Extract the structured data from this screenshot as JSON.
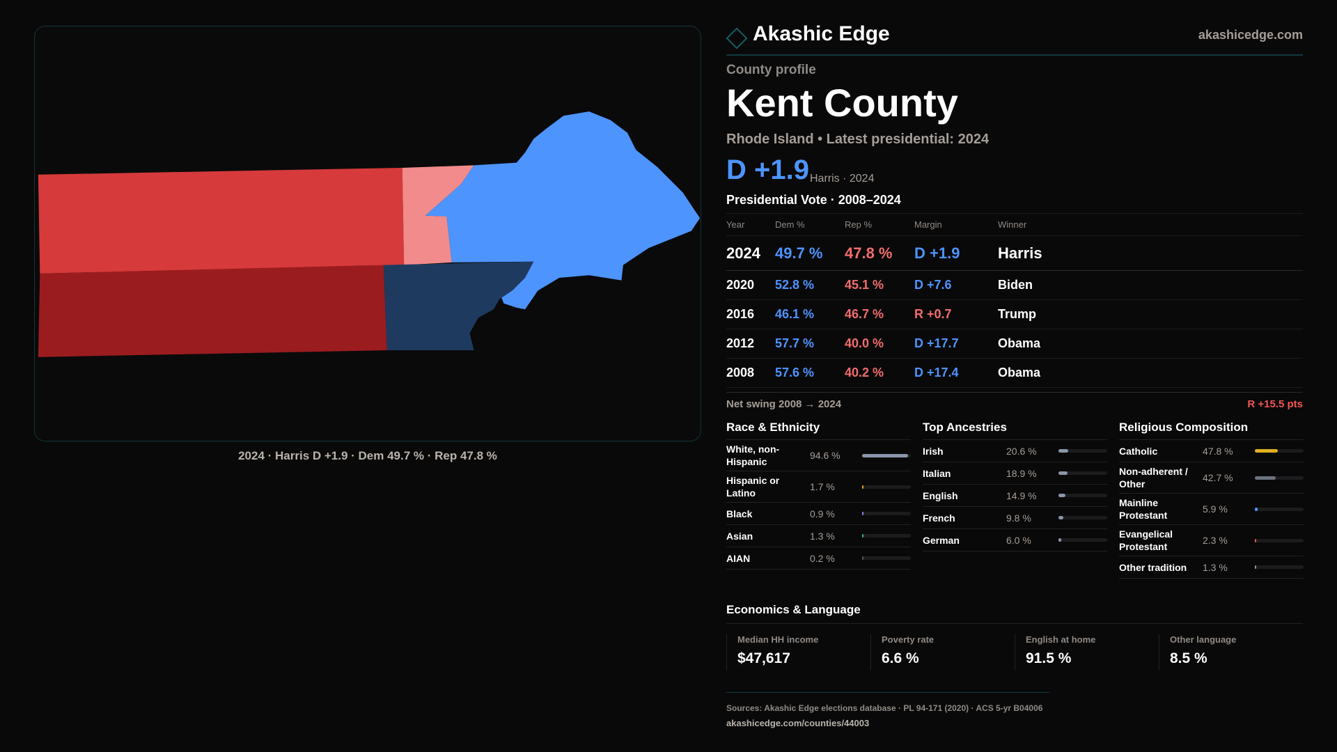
{
  "brand": {
    "name": "Akashic Edge",
    "site": "akashicedge.com"
  },
  "profile": {
    "kicker": "County profile",
    "title": "Kent County",
    "subtitle": "Rhode Island • Latest presidential: 2024",
    "margin": "D +1.9",
    "margin_sub": "Harris · 2024"
  },
  "map": {
    "caption": "2024 · Harris D +1.9 · Dem 49.7 % · Rep 47.8 %",
    "colors": {
      "dem_strong": "#4d94ff",
      "dem_navy": "#1f3a5f",
      "rep": "#d63a3a",
      "rep_dark": "#9b1c1f",
      "rep_light": "#f28b8b"
    }
  },
  "votes": {
    "title": "Presidential Vote · 2008–2024",
    "headers": [
      "Year",
      "Dem %",
      "Rep %",
      "Margin",
      "Winner"
    ],
    "rows": [
      {
        "year": "2024",
        "dem": "49.7 %",
        "rep": "47.8 %",
        "margin": "D +1.9",
        "winner": "Harris",
        "party": "dem"
      },
      {
        "year": "2020",
        "dem": "52.8 %",
        "rep": "45.1 %",
        "margin": "D +7.6",
        "winner": "Biden",
        "party": "dem"
      },
      {
        "year": "2016",
        "dem": "46.1 %",
        "rep": "46.7 %",
        "margin": "R +0.7",
        "winner": "Trump",
        "party": "rep"
      },
      {
        "year": "2012",
        "dem": "57.7 %",
        "rep": "40.0 %",
        "margin": "D +17.7",
        "winner": "Obama",
        "party": "dem"
      },
      {
        "year": "2008",
        "dem": "57.6 %",
        "rep": "40.2 %",
        "margin": "D +17.4",
        "winner": "Obama",
        "party": "dem"
      }
    ],
    "swing_label": "Net swing 2008 → 2024",
    "swing_value": "R +15.5 pts"
  },
  "race": {
    "title": "Race & Ethnicity",
    "items": [
      {
        "label": "White, non-Hispanic",
        "pct": "94.6 %",
        "value": 94.6,
        "color": "#8a96ab"
      },
      {
        "label": "Hispanic or Latino",
        "pct": "1.7 %",
        "value": 1.7,
        "color": "#e0a020"
      },
      {
        "label": "Black",
        "pct": "0.9 %",
        "value": 0.9,
        "color": "#9a7ae0"
      },
      {
        "label": "Asian",
        "pct": "1.3 %",
        "value": 1.3,
        "color": "#2fb58a"
      },
      {
        "label": "AIAN",
        "pct": "0.2 %",
        "value": 0.2,
        "color": "#555"
      }
    ]
  },
  "ancestry": {
    "title": "Top Ancestries",
    "items": [
      {
        "label": "Irish",
        "pct": "20.6 %",
        "value": 20.6,
        "color": "#8a96ab"
      },
      {
        "label": "Italian",
        "pct": "18.9 %",
        "value": 18.9,
        "color": "#8a96ab"
      },
      {
        "label": "English",
        "pct": "14.9 %",
        "value": 14.9,
        "color": "#8a96ab"
      },
      {
        "label": "French",
        "pct": "9.8 %",
        "value": 9.8,
        "color": "#8a96ab"
      },
      {
        "label": "German",
        "pct": "6.0 %",
        "value": 6.0,
        "color": "#8a96ab"
      }
    ]
  },
  "religion": {
    "title": "Religious Composition",
    "items": [
      {
        "label": "Catholic",
        "pct": "47.8 %",
        "value": 47.8,
        "color": "#e0b020"
      },
      {
        "label": "Non-adherent / Other",
        "pct": "42.7 %",
        "value": 42.7,
        "color": "#6b7280"
      },
      {
        "label": "Mainline Protestant",
        "pct": "5.9 %",
        "value": 5.9,
        "color": "#4d94ff"
      },
      {
        "label": "Evangelical Protestant",
        "pct": "2.3 %",
        "value": 2.3,
        "color": "#f25555"
      },
      {
        "label": "Other tradition",
        "pct": "1.3 %",
        "value": 1.3,
        "color": "#8a96ab"
      }
    ]
  },
  "economics": {
    "title": "Economics & Language",
    "stats": [
      {
        "label": "Median HH income",
        "value": "$47,617"
      },
      {
        "label": "Poverty rate",
        "value": "6.6 %"
      },
      {
        "label": "English at home",
        "value": "91.5 %"
      },
      {
        "label": "Other language",
        "value": "8.5 %"
      }
    ]
  },
  "footer": {
    "sources": "Sources: Akashic Edge elections database · PL 94-171 (2020) · ACS 5-yr B04006",
    "url": "akashicedge.com/counties/44003"
  }
}
